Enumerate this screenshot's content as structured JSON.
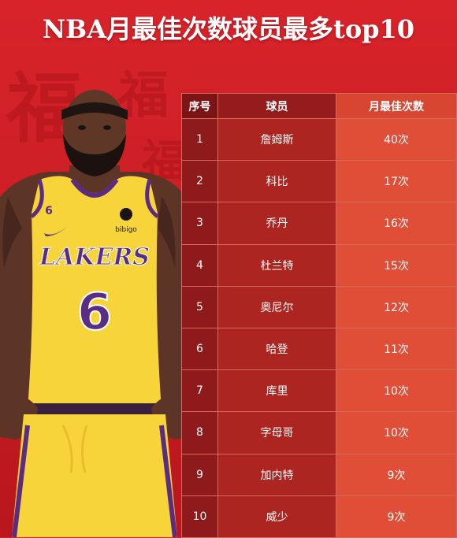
{
  "title": "NBA月最佳次数球员最多top10",
  "watermark_chars": [
    "福",
    "福",
    "福"
  ],
  "jersey": {
    "team": "LAKERS",
    "number": "6",
    "small_number": "6",
    "sponsor": "bibigo"
  },
  "colors": {
    "background": "#d8232a",
    "jersey": "#f7d43a",
    "jersey_trim": "#5a2d82"
  },
  "table": {
    "headers": [
      "序号",
      "球员",
      "月最佳次数"
    ],
    "rows": [
      {
        "rank": "1",
        "player": "詹姆斯",
        "count": "40次"
      },
      {
        "rank": "2",
        "player": "科比",
        "count": "17次"
      },
      {
        "rank": "3",
        "player": "乔丹",
        "count": "16次"
      },
      {
        "rank": "4",
        "player": "杜兰特",
        "count": "15次"
      },
      {
        "rank": "5",
        "player": "奥尼尔",
        "count": "12次"
      },
      {
        "rank": "6",
        "player": "哈登",
        "count": "11次"
      },
      {
        "rank": "7",
        "player": "库里",
        "count": "10次"
      },
      {
        "rank": "8",
        "player": "字母哥",
        "count": "10次"
      },
      {
        "rank": "9",
        "player": "加内特",
        "count": "9次"
      },
      {
        "rank": "10",
        "player": "威少",
        "count": "9次"
      }
    ]
  }
}
